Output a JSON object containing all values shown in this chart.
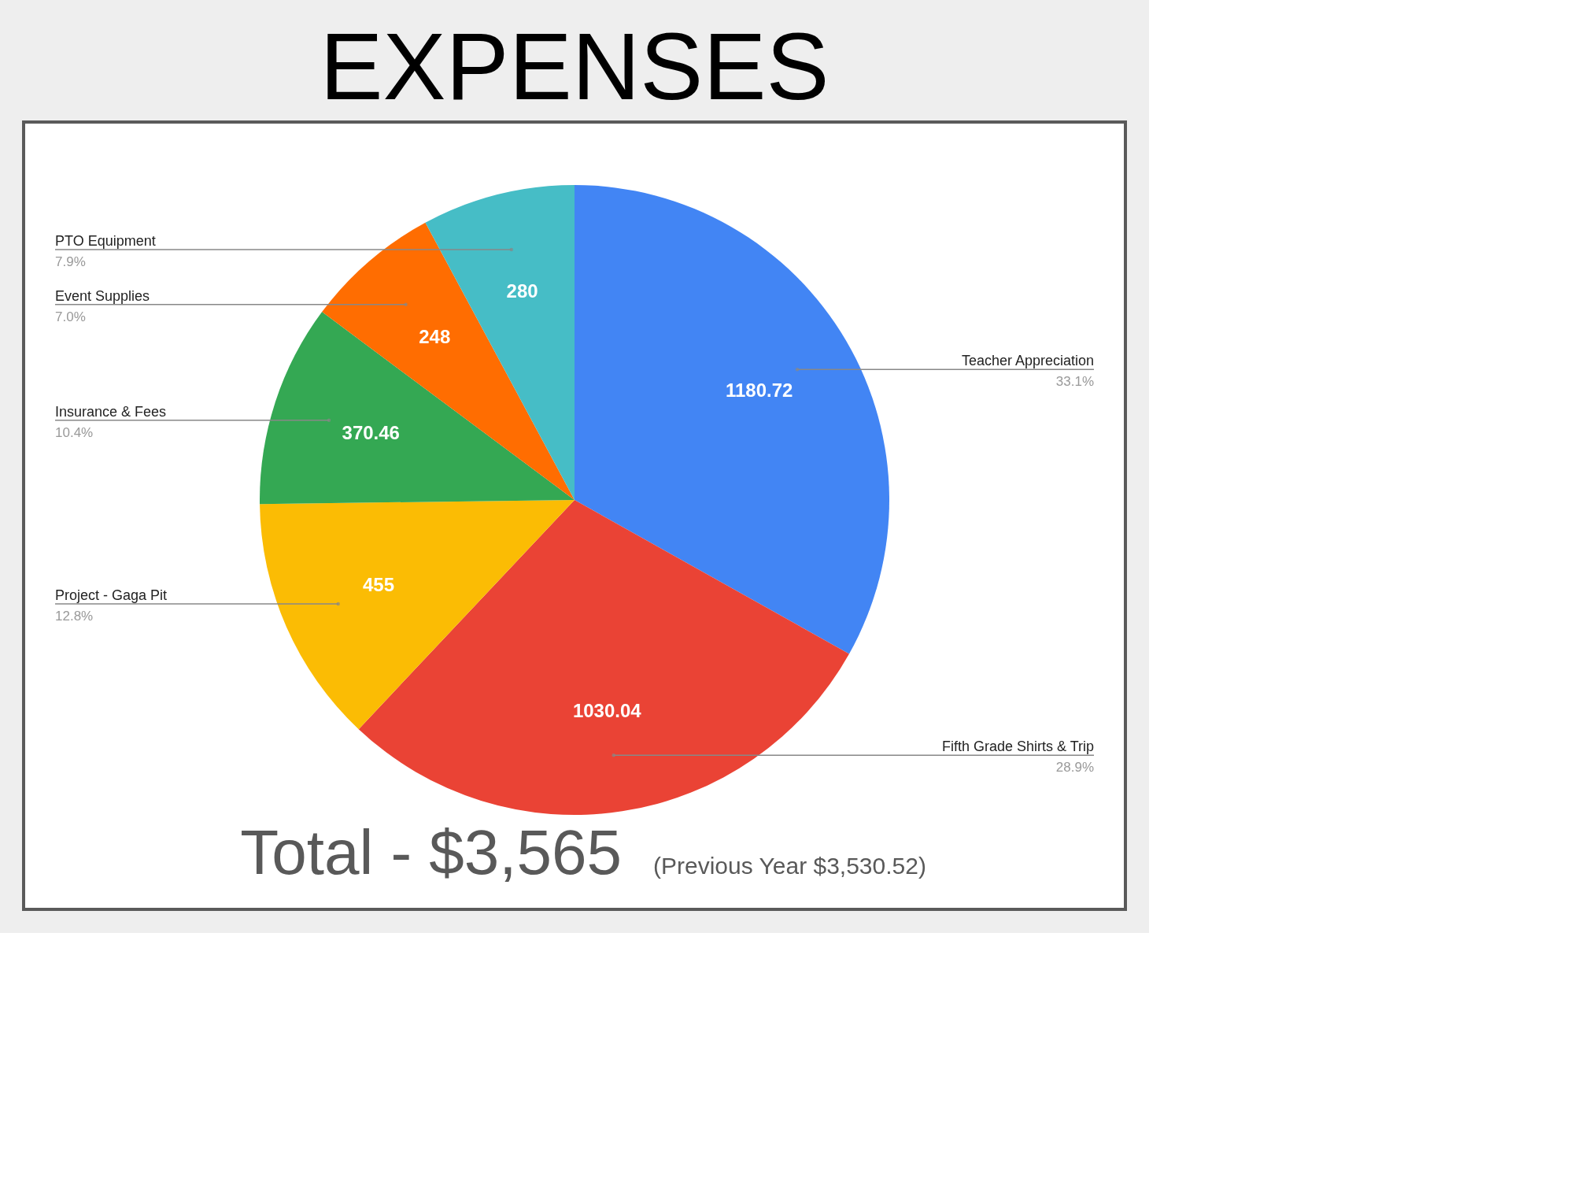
{
  "chart_data": {
    "type": "pie",
    "title": "EXPENSES",
    "categories": [
      "Teacher Appreciation",
      "Fifth Grade Shirts & Trip",
      "Project - Gaga Pit",
      "Insurance & Fees",
      "Event Supplies",
      "PTO Equipment"
    ],
    "values": [
      1180.72,
      1030.04,
      455,
      370.46,
      248,
      280
    ],
    "colors": [
      "#4285f4",
      "#ea4335",
      "#fbbc04",
      "#34a853",
      "#ff6d01",
      "#46bdc6"
    ],
    "data_labels": true,
    "annotations": [
      {
        "text": "33.1%",
        "x": "Teacher Appreciation"
      },
      {
        "text": "28.9%",
        "x": "Fifth Grade Shirts & Trip"
      },
      {
        "text": "12.8%",
        "x": "Project - Gaga Pit"
      },
      {
        "text": "10.4%",
        "x": "Insurance & Fees"
      },
      {
        "text": "7.0%",
        "x": "Event Supplies"
      },
      {
        "text": "7.9%",
        "x": "PTO Equipment"
      },
      "Total - $3,565",
      "(Previous Year $3,530.52)"
    ]
  }
}
